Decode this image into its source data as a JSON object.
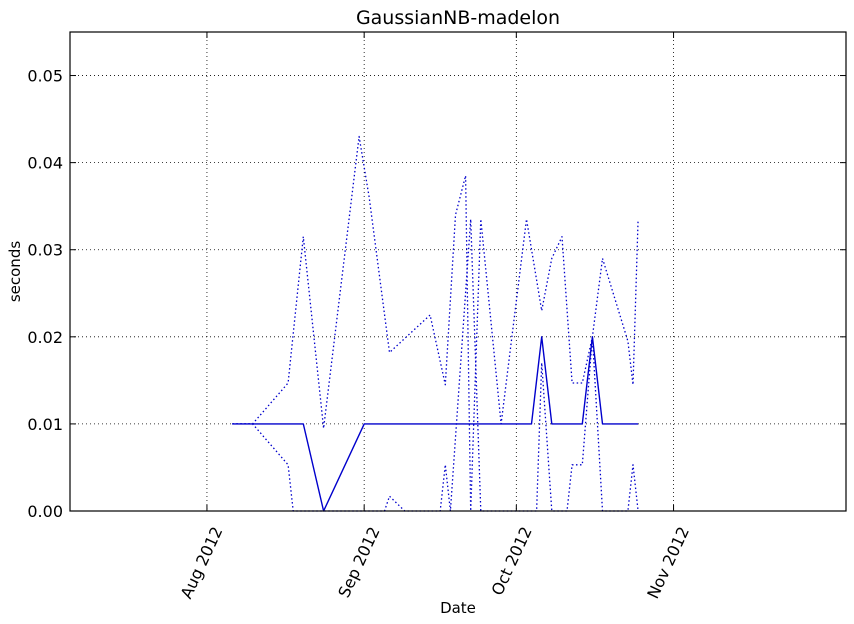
{
  "chart_data": {
    "type": "line",
    "title": "GaussianNB-madelon",
    "xlabel": "Date",
    "ylabel": "seconds",
    "xlim": [
      "2012-07-05",
      "2012-12-05"
    ],
    "ylim": [
      0,
      0.055
    ],
    "grid": true,
    "xticks": [
      {
        "date": "2012-08-01",
        "label": "Aug 2012"
      },
      {
        "date": "2012-09-01",
        "label": "Sep 2012"
      },
      {
        "date": "2012-10-01",
        "label": "Oct 2012"
      },
      {
        "date": "2012-11-01",
        "label": "Nov 2012"
      }
    ],
    "yticks": [
      {
        "value": 0,
        "label": "0.00"
      },
      {
        "value": 0.01,
        "label": "0.01"
      },
      {
        "value": 0.02,
        "label": "0.02"
      },
      {
        "value": 0.03,
        "label": "0.03"
      },
      {
        "value": 0.04,
        "label": "0.04"
      },
      {
        "value": 0.05,
        "label": "0.05"
      }
    ],
    "color": "#0000cc",
    "series": [
      {
        "style": "solid",
        "points": [
          [
            "2012-08-06",
            0.01
          ],
          [
            "2012-08-10",
            0.01
          ],
          [
            "2012-08-20",
            0.01
          ],
          [
            "2012-08-24",
            0.0
          ],
          [
            "2012-09-01",
            0.01
          ],
          [
            "2012-09-10",
            0.01
          ],
          [
            "2012-09-20",
            0.01
          ],
          [
            "2012-09-25",
            0.01
          ],
          [
            "2012-10-04",
            0.01
          ],
          [
            "2012-10-06",
            0.02
          ],
          [
            "2012-10-08",
            0.01
          ],
          [
            "2012-10-14",
            0.01
          ],
          [
            "2012-10-16",
            0.02
          ],
          [
            "2012-10-18",
            0.01
          ],
          [
            "2012-10-25",
            0.01
          ]
        ]
      },
      {
        "style": "dotted",
        "points": [
          [
            "2012-08-06",
            0.01
          ],
          [
            "2012-08-10",
            0.01
          ],
          [
            "2012-08-17",
            0.0147
          ],
          [
            "2012-08-20",
            0.0315
          ],
          [
            "2012-08-24",
            0.0095
          ],
          [
            "2012-08-31",
            0.043
          ],
          [
            "2012-09-02",
            0.036
          ],
          [
            "2012-09-06",
            0.0182
          ],
          [
            "2012-09-14",
            0.0225
          ],
          [
            "2012-09-17",
            0.0145
          ],
          [
            "2012-09-19",
            0.034
          ],
          [
            "2012-09-21",
            0.0385
          ],
          [
            "2012-09-22",
            0.0
          ],
          [
            "2012-09-24",
            0.0335
          ],
          [
            "2012-09-28",
            0.01
          ],
          [
            "2012-10-03",
            0.0335
          ],
          [
            "2012-10-06",
            0.023
          ],
          [
            "2012-10-08",
            0.029
          ],
          [
            "2012-10-10",
            0.0315
          ],
          [
            "2012-10-12",
            0.0147
          ],
          [
            "2012-10-14",
            0.0147
          ],
          [
            "2012-10-16",
            0.02
          ],
          [
            "2012-10-18",
            0.029
          ],
          [
            "2012-10-23",
            0.0195
          ],
          [
            "2012-10-24",
            0.0145
          ],
          [
            "2012-10-25",
            0.0335
          ]
        ]
      },
      {
        "style": "dotted",
        "points": [
          [
            "2012-08-06",
            0.01
          ],
          [
            "2012-08-10",
            0.01
          ],
          [
            "2012-08-17",
            0.0053
          ],
          [
            "2012-08-18",
            0.0
          ],
          [
            "2012-09-05",
            0.0
          ],
          [
            "2012-09-06",
            0.0017
          ],
          [
            "2012-09-09",
            0.0
          ],
          [
            "2012-09-16",
            0.0
          ],
          [
            "2012-09-17",
            0.0053
          ],
          [
            "2012-09-18",
            0.0
          ],
          [
            "2012-09-22",
            0.0335
          ],
          [
            "2012-09-24",
            0.0
          ],
          [
            "2012-10-03",
            0.0
          ],
          [
            "2012-10-05",
            0.0
          ],
          [
            "2012-10-06",
            0.017
          ],
          [
            "2012-10-08",
            0.0
          ],
          [
            "2012-10-11",
            0.0
          ],
          [
            "2012-10-12",
            0.0053
          ],
          [
            "2012-10-14",
            0.0053
          ],
          [
            "2012-10-16",
            0.02
          ],
          [
            "2012-10-18",
            0.0
          ],
          [
            "2012-10-23",
            0.0
          ],
          [
            "2012-10-24",
            0.0053
          ],
          [
            "2012-10-25",
            0.0
          ]
        ]
      }
    ]
  }
}
